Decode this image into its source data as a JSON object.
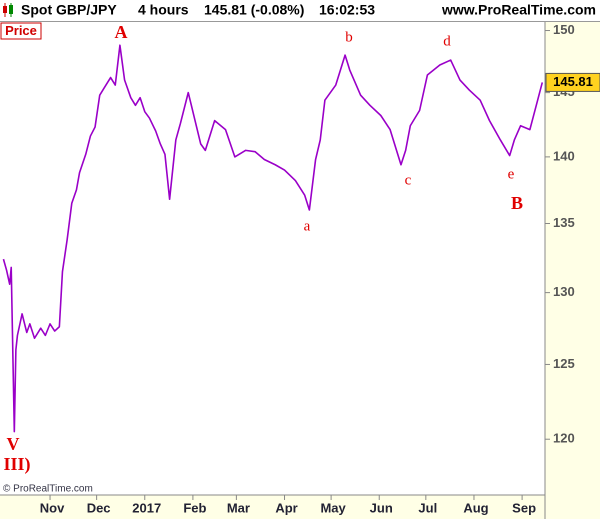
{
  "header": {
    "instrument": "Spot GBP/JPY",
    "timeframe": "4 hours",
    "quote": "145.81 (-0.08%)",
    "time": "16:02:53",
    "site": "www.ProRealTime.com"
  },
  "panel_label": "Price",
  "copyright": "© ProRealTime.com",
  "chart_data": {
    "type": "line",
    "log": true,
    "grid": false,
    "series": [
      {
        "name": "Price",
        "color": "#9a00c8",
        "x": [
          1,
          3,
          5,
          6,
          8,
          9,
          10,
          13,
          16,
          18,
          21,
          25,
          28,
          31,
          34,
          37,
          39,
          42,
          45,
          48,
          50,
          54,
          57,
          60,
          63,
          66,
          70,
          73,
          76,
          79,
          83,
          86,
          89,
          92,
          95,
          99,
          102,
          105,
          108,
          112,
          115,
          120,
          122,
          128,
          131,
          137,
          144,
          150,
          157,
          163,
          169,
          176,
          182,
          189,
          195,
          198,
          202,
          205,
          208,
          215,
          221,
          224,
          231,
          237,
          244,
          250,
          257,
          260,
          263,
          269,
          274,
          282,
          289,
          295,
          301,
          308,
          314,
          321,
          327,
          330,
          334,
          340,
          345,
          348
        ],
        "values": [
          132.4,
          131.6,
          130.6,
          131.8,
          120.5,
          126.0,
          127.0,
          128.5,
          127.2,
          127.8,
          126.8,
          127.5,
          127.0,
          127.8,
          127.3,
          127.6,
          131.5,
          133.8,
          136.5,
          137.5,
          138.8,
          140.2,
          141.6,
          142.3,
          144.8,
          145.4,
          146.2,
          145.6,
          148.8,
          146.0,
          144.6,
          144.0,
          144.6,
          143.5,
          143.0,
          142.0,
          141.0,
          140.2,
          136.8,
          141.3,
          142.6,
          145.0,
          144.0,
          141.0,
          140.5,
          142.8,
          142.1,
          140.0,
          140.5,
          140.4,
          139.8,
          139.4,
          139.0,
          138.2,
          137.1,
          136.0,
          139.8,
          141.3,
          144.4,
          145.6,
          148.0,
          146.8,
          144.8,
          144.0,
          143.2,
          142.1,
          139.4,
          140.5,
          142.4,
          143.6,
          146.4,
          147.2,
          147.6,
          146.0,
          145.2,
          144.4,
          142.8,
          141.3,
          140.1,
          141.3,
          142.4,
          142.1,
          144.4,
          145.81
        ]
      }
    ],
    "xlim": [
      0,
      350
    ],
    "xticks": [
      {
        "value": 31,
        "label": "Nov"
      },
      {
        "value": 61,
        "label": "Dec"
      },
      {
        "value": 92,
        "label": "2017"
      },
      {
        "value": 123,
        "label": "Feb"
      },
      {
        "value": 151,
        "label": "Mar"
      },
      {
        "value": 182,
        "label": "Apr"
      },
      {
        "value": 212,
        "label": "May"
      },
      {
        "value": 243,
        "label": "Jun"
      },
      {
        "value": 273,
        "label": "Jul"
      },
      {
        "value": 304,
        "label": "Aug"
      },
      {
        "value": 335,
        "label": "Sep"
      }
    ],
    "ylim": [
      116.4,
      150.7
    ],
    "yticks": [
      120,
      125,
      130,
      135,
      140,
      145,
      150
    ],
    "annotations": [
      {
        "text": "A"
      },
      {
        "text": "a"
      },
      {
        "text": "b"
      },
      {
        "text": "c"
      },
      {
        "text": "d"
      },
      {
        "text": "e"
      },
      {
        "text": "B"
      },
      {
        "text": "V"
      },
      {
        "text": "III)"
      }
    ]
  }
}
